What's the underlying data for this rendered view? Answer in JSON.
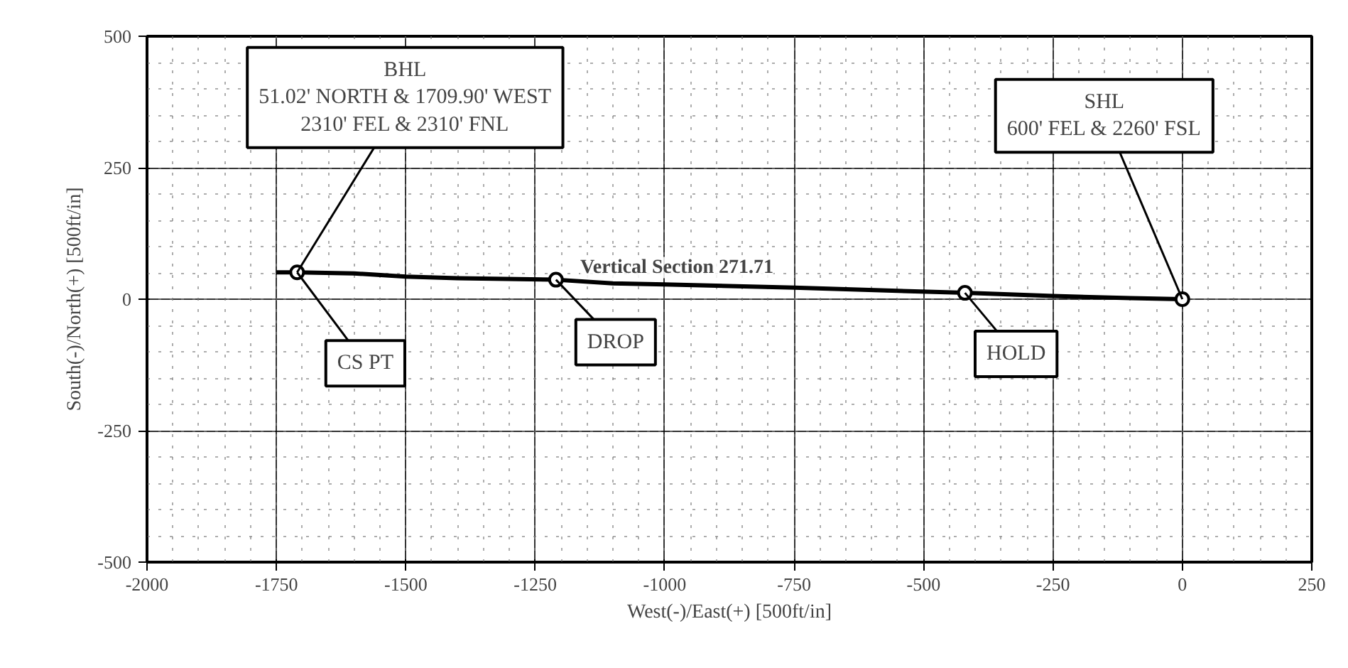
{
  "chart_data": {
    "type": "line",
    "xlabel": "West(-)/East(+) [500ft/in]",
    "ylabel": "South(-)/North(+) [500ft/in]",
    "xlim": [
      -2000,
      250
    ],
    "ylim": [
      -500,
      500
    ],
    "xticks": [
      -2000,
      -1750,
      -1500,
      -1250,
      -1000,
      -750,
      -500,
      -250,
      0,
      250
    ],
    "yticks": [
      -500,
      -250,
      0,
      250,
      500
    ],
    "grid": true,
    "series": [
      {
        "color": "#000000",
        "marker": "none",
        "x": [
          -1750,
          -1710,
          -1600,
          -1500,
          -1400,
          -1210,
          -1100,
          -1000,
          -750,
          -420,
          -250,
          -100,
          0
        ],
        "values": [
          51,
          51,
          49,
          43,
          40,
          37,
          30,
          28,
          22,
          12,
          6,
          2,
          0
        ]
      },
      {
        "type": "scatter",
        "color": "#000000",
        "marker": "circle",
        "x": [
          -1710,
          -1210,
          -420,
          0
        ],
        "values": [
          51,
          37,
          12,
          0
        ]
      }
    ],
    "annotations": [
      {
        "text": "BHL\n51.02' NORTH & 1709.90' WEST\n2310' FEL & 2310' FNL",
        "x": -1710,
        "y": 51
      },
      {
        "text": "SHL\n600' FEL & 2260' FSL",
        "x": 0,
        "y": 0
      },
      {
        "text": "CS PT",
        "x": -1710,
        "y": 51
      },
      {
        "text": "DROP",
        "x": -1210,
        "y": 37
      },
      {
        "text": "HOLD",
        "x": -420,
        "y": 12
      },
      "Vertical Section 271.71"
    ]
  }
}
